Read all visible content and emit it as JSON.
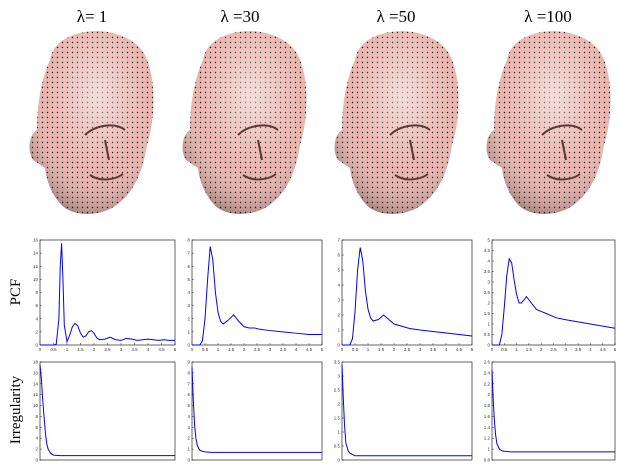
{
  "column_labels": [
    "λ= 1",
    "λ =30",
    "λ =50",
    "λ =100"
  ],
  "row_labels": [
    "PCF",
    "Irregularity"
  ],
  "chart_data": [
    {
      "type": "line",
      "color": "#0000ff",
      "xlim": [
        0,
        5
      ],
      "xticks": [
        0,
        0.5,
        1,
        1.5,
        2,
        2.5,
        3,
        3.5,
        4,
        4.5,
        5
      ],
      "ylim": [
        0,
        16
      ],
      "yticks": [
        0,
        2,
        4,
        6,
        8,
        10,
        12,
        14,
        16
      ],
      "x": [
        0,
        0.5,
        0.6,
        0.7,
        0.75,
        0.8,
        0.85,
        0.9,
        1.0,
        1.1,
        1.2,
        1.3,
        1.4,
        1.5,
        1.6,
        1.7,
        1.8,
        1.9,
        2.0,
        2.1,
        2.2,
        2.4,
        2.6,
        2.8,
        3.0,
        3.2,
        3.4,
        3.6,
        3.8,
        4.0,
        4.2,
        4.4,
        4.6,
        4.8,
        5.0
      ],
      "values": [
        0,
        0,
        0.1,
        4,
        12,
        15.5,
        10,
        3,
        0.5,
        1.5,
        2.8,
        3.3,
        2.9,
        1.8,
        1.2,
        1.4,
        2.0,
        2.2,
        1.8,
        1.1,
        0.8,
        0.9,
        1.2,
        0.8,
        0.7,
        1.0,
        0.9,
        0.7,
        0.8,
        0.9,
        0.8,
        0.7,
        0.8,
        0.7,
        0.7
      ]
    },
    {
      "type": "line",
      "color": "#0000ff",
      "xlim": [
        0,
        5
      ],
      "xticks": [
        0,
        0.5,
        1,
        1.5,
        2,
        2.5,
        3,
        3.5,
        4,
        4.5,
        5
      ],
      "ylim": [
        0,
        8
      ],
      "yticks": [
        0,
        1,
        2,
        3,
        4,
        5,
        6,
        7,
        8
      ],
      "x": [
        0,
        0.3,
        0.4,
        0.5,
        0.6,
        0.7,
        0.8,
        0.9,
        1.0,
        1.1,
        1.2,
        1.4,
        1.6,
        1.8,
        2.0,
        2.2,
        2.4,
        2.6,
        3.0,
        3.5,
        4.0,
        4.5,
        5.0
      ],
      "values": [
        0,
        0,
        0.3,
        2,
        5,
        7.5,
        6.5,
        4,
        2.5,
        1.8,
        1.6,
        1.9,
        2.3,
        1.8,
        1.4,
        1.3,
        1.3,
        1.2,
        1.1,
        1.0,
        0.9,
        0.8,
        0.8
      ]
    },
    {
      "type": "line",
      "color": "#0000ff",
      "xlim": [
        0,
        5
      ],
      "xticks": [
        0,
        0.5,
        1,
        1.5,
        2,
        2.5,
        3,
        3.5,
        4,
        4.5,
        5
      ],
      "ylim": [
        0,
        7
      ],
      "yticks": [
        0,
        1,
        2,
        3,
        4,
        5,
        6,
        7
      ],
      "x": [
        0,
        0.3,
        0.4,
        0.5,
        0.6,
        0.7,
        0.8,
        0.9,
        1.0,
        1.1,
        1.2,
        1.4,
        1.6,
        1.8,
        2.0,
        2.2,
        2.4,
        2.6,
        3.0,
        3.5,
        4.0,
        4.5,
        5.0
      ],
      "values": [
        0,
        0,
        0.4,
        2.2,
        5,
        6.5,
        5.6,
        3.6,
        2.4,
        1.8,
        1.6,
        1.7,
        2.0,
        1.7,
        1.4,
        1.3,
        1.2,
        1.1,
        1.0,
        0.9,
        0.8,
        0.7,
        0.6
      ]
    },
    {
      "type": "line",
      "color": "#0000ff",
      "xlim": [
        0,
        5
      ],
      "xticks": [
        0,
        0.5,
        1,
        1.5,
        2,
        2.5,
        3,
        3.5,
        4,
        4.5,
        5
      ],
      "ylim": [
        0,
        5
      ],
      "yticks": [
        0,
        0.5,
        1,
        1.5,
        2,
        2.5,
        3,
        3.5,
        4,
        4.5,
        5
      ],
      "x": [
        0,
        0.3,
        0.4,
        0.5,
        0.6,
        0.7,
        0.8,
        0.9,
        1.0,
        1.1,
        1.2,
        1.4,
        1.6,
        1.8,
        2.0,
        2.2,
        2.4,
        2.6,
        3.0,
        3.5,
        4.0,
        4.5,
        5.0
      ],
      "values": [
        0,
        0,
        0.5,
        1.8,
        3.3,
        4.1,
        3.9,
        3.1,
        2.4,
        2.0,
        2.0,
        2.3,
        2.0,
        1.7,
        1.6,
        1.5,
        1.4,
        1.3,
        1.2,
        1.1,
        1.0,
        0.9,
        0.8
      ]
    },
    {
      "type": "line",
      "color": "#0000ff",
      "xlim": [
        0,
        100
      ],
      "ylim": [
        0,
        18
      ],
      "yticks": [
        0,
        2,
        4,
        6,
        8,
        10,
        12,
        14,
        16,
        18
      ],
      "x": [
        0,
        1,
        2,
        3,
        4,
        5,
        6,
        8,
        10,
        15,
        20,
        30,
        40,
        60,
        80,
        100
      ],
      "values": [
        17.5,
        15,
        11,
        8,
        5,
        3,
        2,
        1.2,
        0.9,
        0.8,
        0.8,
        0.8,
        0.8,
        0.8,
        0.8,
        0.8
      ]
    },
    {
      "type": "line",
      "color": "#0000ff",
      "xlim": [
        0,
        100
      ],
      "ylim": [
        0,
        9
      ],
      "yticks": [
        0,
        1,
        2,
        3,
        4,
        5,
        6,
        7,
        8,
        9
      ],
      "x": [
        0,
        1,
        2,
        3,
        4,
        5,
        6,
        8,
        10,
        15,
        20,
        30,
        40,
        60,
        80,
        100
      ],
      "values": [
        8.5,
        5.5,
        3.2,
        2.0,
        1.4,
        1.1,
        0.9,
        0.8,
        0.75,
        0.7,
        0.7,
        0.7,
        0.7,
        0.7,
        0.7,
        0.7
      ]
    },
    {
      "type": "line",
      "color": "#0000ff",
      "xlim": [
        0,
        100
      ],
      "ylim": [
        0,
        3.5
      ],
      "yticks": [
        0,
        0.5,
        1,
        1.5,
        2,
        2.5,
        3,
        3.5
      ],
      "x": [
        0,
        1,
        2,
        3,
        4,
        5,
        6,
        8,
        10,
        15,
        20,
        30,
        40,
        60,
        80,
        100
      ],
      "values": [
        3.4,
        2.2,
        1.2,
        0.6,
        0.45,
        0.3,
        0.25,
        0.2,
        0.15,
        0.15,
        0.15,
        0.15,
        0.15,
        0.15,
        0.15,
        0.15
      ]
    },
    {
      "type": "line",
      "color": "#0000ff",
      "xlim": [
        0,
        100
      ],
      "ylim": [
        0.8,
        2.6
      ],
      "yticks": [
        0.8,
        1,
        1.2,
        1.4,
        1.6,
        1.8,
        2,
        2.2,
        2.4,
        2.6
      ],
      "x": [
        0,
        1,
        2,
        3,
        4,
        5,
        6,
        8,
        10,
        15,
        20,
        30,
        40,
        60,
        80,
        100
      ],
      "values": [
        2.45,
        1.9,
        1.5,
        1.25,
        1.1,
        1.05,
        1.0,
        0.97,
        0.96,
        0.95,
        0.95,
        0.95,
        0.95,
        0.95,
        0.95,
        0.95
      ]
    }
  ]
}
